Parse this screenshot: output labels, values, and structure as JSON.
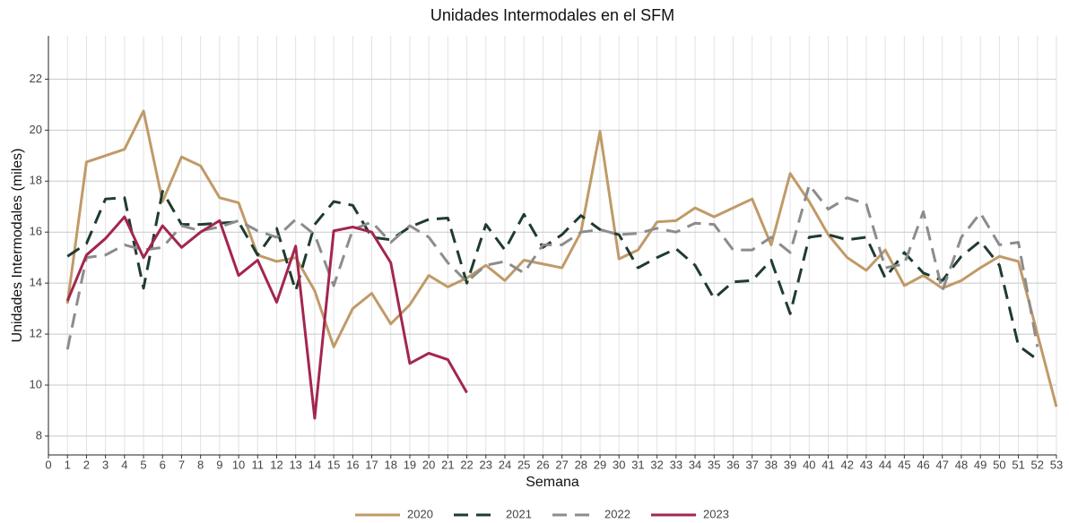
{
  "chart_data": {
    "type": "line",
    "title": "Unidades Intermodales en el SFM",
    "x_label": "Semana",
    "y_label": "Unidades Intermodales (miles)",
    "x": [
      1,
      2,
      3,
      4,
      5,
      6,
      7,
      8,
      9,
      10,
      11,
      12,
      13,
      14,
      15,
      16,
      17,
      18,
      19,
      20,
      21,
      22,
      23,
      24,
      25,
      26,
      27,
      28,
      29,
      30,
      31,
      32,
      33,
      34,
      35,
      36,
      37,
      38,
      39,
      40,
      41,
      42,
      43,
      44,
      45,
      46,
      47,
      48,
      49,
      50,
      51,
      52,
      53
    ],
    "xlim": [
      0,
      53
    ],
    "xticks": [
      0,
      1,
      2,
      3,
      4,
      5,
      6,
      7,
      8,
      9,
      10,
      11,
      12,
      13,
      14,
      15,
      16,
      17,
      18,
      19,
      20,
      21,
      22,
      23,
      24,
      25,
      26,
      27,
      28,
      29,
      30,
      31,
      32,
      33,
      34,
      35,
      36,
      37,
      38,
      39,
      40,
      41,
      42,
      43,
      44,
      45,
      46,
      47,
      48,
      49,
      50,
      51,
      52,
      53
    ],
    "ylim": [
      7.26,
      23.7
    ],
    "yticks": [
      8,
      10,
      12,
      14,
      16,
      18,
      20,
      22
    ],
    "grid": true,
    "legend": "bottom",
    "series": [
      {
        "name": "2020",
        "color": "#c09a68",
        "dash": false,
        "values": [
          13.2,
          18.75,
          19.0,
          19.25,
          20.75,
          17.2,
          18.95,
          18.6,
          17.35,
          17.15,
          15.1,
          14.85,
          15.0,
          13.7,
          11.5,
          13.0,
          13.6,
          12.4,
          13.15,
          14.3,
          13.85,
          14.2,
          14.7,
          14.1,
          14.9,
          14.75,
          14.6,
          16.0,
          19.95,
          14.95,
          15.3,
          16.4,
          16.45,
          16.95,
          16.6,
          16.95,
          17.3,
          15.5,
          18.3,
          17.2,
          15.9,
          15.0,
          14.5,
          15.3,
          13.9,
          14.3,
          13.8,
          14.1,
          14.6,
          15.05,
          14.85,
          12.0,
          9.15
        ]
      },
      {
        "name": "2021",
        "color": "#1f3b30",
        "dash": true,
        "values": [
          15.05,
          15.55,
          17.3,
          17.35,
          13.8,
          17.6,
          16.3,
          16.3,
          16.35,
          16.4,
          15.1,
          16.15,
          13.7,
          16.3,
          17.2,
          17.05,
          15.8,
          15.7,
          16.2,
          16.5,
          16.55,
          14.0,
          16.3,
          15.3,
          16.7,
          15.4,
          15.9,
          16.65,
          16.1,
          15.9,
          14.6,
          15.0,
          15.35,
          14.7,
          13.4,
          14.05,
          14.1,
          14.9,
          12.8,
          15.8,
          15.9,
          15.7,
          15.8,
          14.2,
          15.2,
          14.4,
          14.1,
          15.05,
          15.65,
          14.7,
          11.55,
          11.0,
          null
        ]
      },
      {
        "name": "2022",
        "color": "#8c8c8c",
        "dash": true,
        "values": [
          11.4,
          15.0,
          15.1,
          15.5,
          15.3,
          15.4,
          16.25,
          16.05,
          16.2,
          16.45,
          16.05,
          15.8,
          16.5,
          15.9,
          13.9,
          16.1,
          16.4,
          15.6,
          16.25,
          15.8,
          14.8,
          14.05,
          14.7,
          14.85,
          14.4,
          15.5,
          15.5,
          16.0,
          16.1,
          15.9,
          15.95,
          16.15,
          16.0,
          16.35,
          16.3,
          15.3,
          15.3,
          15.8,
          15.2,
          17.85,
          16.9,
          17.35,
          17.1,
          14.6,
          14.75,
          16.8,
          13.7,
          15.8,
          16.75,
          15.5,
          15.6,
          11.5,
          null
        ]
      },
      {
        "name": "2023",
        "color": "#a3264f",
        "dash": false,
        "values": [
          13.3,
          15.1,
          15.75,
          16.6,
          15.0,
          16.25,
          15.4,
          16.0,
          16.45,
          14.3,
          14.9,
          13.25,
          15.45,
          8.7,
          16.05,
          16.2,
          16.0,
          14.8,
          10.85,
          11.25,
          11.0,
          9.7,
          null,
          null,
          null,
          null,
          null,
          null,
          null,
          null,
          null,
          null,
          null,
          null,
          null,
          null,
          null,
          null,
          null,
          null,
          null,
          null,
          null,
          null,
          null,
          null,
          null,
          null,
          null,
          null,
          null,
          null,
          null
        ]
      }
    ]
  }
}
